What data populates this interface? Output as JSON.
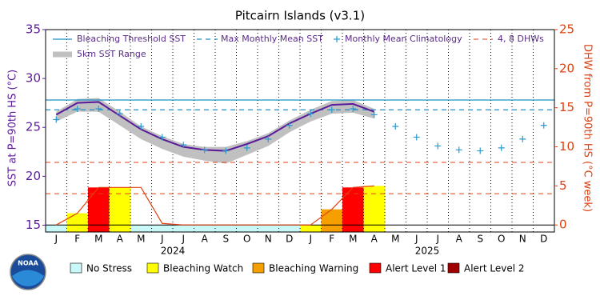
{
  "chart_data": {
    "type": "line",
    "title": "Pitcairn Islands (v3.1)",
    "y_label": "SST at P=90th HS (°C)",
    "y2_label": "DHW from P=90th HS (°C week)",
    "categories": [
      "J",
      "F",
      "M",
      "A",
      "M",
      "J",
      "J",
      "A",
      "S",
      "O",
      "N",
      "D",
      "J",
      "F",
      "M",
      "A",
      "M",
      "J",
      "J",
      "A",
      "S",
      "O",
      "N",
      "D"
    ],
    "years": [
      "2024",
      "2025"
    ],
    "ylim": [
      14.3,
      35
    ],
    "yticks": [
      15,
      20,
      25,
      30,
      35
    ],
    "y2lim": [
      -0.9,
      25
    ],
    "y2ticks": [
      0,
      5,
      10,
      15,
      20,
      25
    ],
    "threshold": {
      "name": "Bleaching Threshold SST",
      "value": 27.8,
      "color": "#1e90c8"
    },
    "mmm": {
      "name": "Max Monthly Mean SST",
      "value": 26.8,
      "color": "#1e90c8"
    },
    "climatology": {
      "name": "Monthly Mean Climatology",
      "color": "#2a9ad0",
      "values": [
        25.8,
        26.9,
        26.9,
        26.4,
        25.1,
        24.0,
        23.2,
        22.7,
        22.6,
        22.9,
        23.8,
        25.2,
        26.4,
        26.8,
        26.9,
        26.3,
        25.1,
        24.0,
        23.1,
        22.7,
        22.6,
        22.9,
        23.8,
        25.2
      ]
    },
    "range": {
      "name": "5km SST Range",
      "color": "#c0c0c0",
      "low": [
        25.6,
        26.6,
        26.6,
        25.2,
        23.8,
        22.8,
        22.0,
        21.6,
        21.3,
        22.2,
        23.1,
        24.5,
        25.6,
        26.4,
        26.5,
        25.9,
        null,
        null,
        null,
        null,
        null,
        null,
        null,
        null
      ],
      "high": [
        26.6,
        27.9,
        28.0,
        26.6,
        25.1,
        24.1,
        23.3,
        23.0,
        23.0,
        23.6,
        24.4,
        25.7,
        26.8,
        27.7,
        27.8,
        26.9,
        null,
        null,
        null,
        null,
        null,
        null,
        null,
        null
      ]
    },
    "sst": {
      "color": "#5a1a9a",
      "values": [
        26.3,
        27.5,
        27.6,
        26.2,
        24.8,
        23.8,
        23.0,
        22.7,
        22.6,
        23.3,
        24.1,
        25.4,
        26.4,
        27.3,
        27.4,
        26.6,
        null,
        null,
        null,
        null,
        null,
        null,
        null,
        null
      ]
    },
    "dhw": {
      "axis": "y2",
      "color": "#e04010",
      "values": [
        0,
        1.5,
        4.8,
        4.8,
        4.8,
        0.2,
        0,
        0,
        0,
        0,
        0,
        0,
        0,
        2.0,
        4.8,
        5.0,
        null,
        null,
        null,
        null,
        null,
        null,
        null,
        null
      ]
    },
    "dhw_thresholds": {
      "name": "4, 8 DHWs",
      "color": "#e04010",
      "values": [
        4,
        8
      ]
    },
    "alert_levels": [
      {
        "name": "No Stress",
        "color": "#c8f8f8"
      },
      {
        "name": "Bleaching Watch",
        "color": "#ffff00"
      },
      {
        "name": "Bleaching Warning",
        "color": "#f5a000"
      },
      {
        "name": "Alert Level 1",
        "color": "#ff0000"
      },
      {
        "name": "Alert Level 2",
        "color": "#a00000"
      }
    ],
    "alert_status": [
      "No Stress",
      "Bleaching Watch",
      "Alert Level 1",
      "Bleaching Watch",
      "No Stress",
      "No Stress",
      "No Stress",
      "No Stress",
      "No Stress",
      "No Stress",
      "No Stress",
      "No Stress",
      "Bleaching Watch",
      "Bleaching Warning",
      "Alert Level 1",
      "Bleaching Watch",
      null,
      null,
      null,
      null,
      null,
      null,
      null,
      null
    ]
  }
}
